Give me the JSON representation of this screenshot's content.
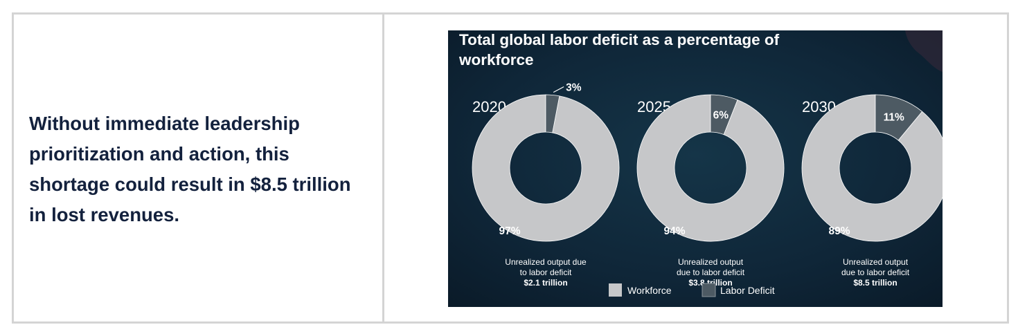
{
  "left_panel": {
    "text": "Without immediate leadership prioritization and action, this shortage could result in $8.5 trillion in lost revenues."
  },
  "chart_data": {
    "type": "pie",
    "title_lines": [
      "Total global labor deficit as a percentage of",
      "workforce"
    ],
    "charts": [
      {
        "year": "2020",
        "workforce_pct": 97,
        "deficit_pct": 3,
        "workforce_label": "97%",
        "deficit_label": "3%",
        "caption_lines": [
          "Unrealized output due",
          "to labor deficit"
        ],
        "amount": "$2.1 trillion"
      },
      {
        "year": "2025",
        "workforce_pct": 94,
        "deficit_pct": 6,
        "workforce_label": "94%",
        "deficit_label": "6%",
        "caption_lines": [
          "Unrealized output",
          "due to labor deficit"
        ],
        "amount": "$3.8 trillion"
      },
      {
        "year": "2030",
        "workforce_pct": 89,
        "deficit_pct": 11,
        "workforce_label": "89%",
        "deficit_label": "11%",
        "caption_lines": [
          "Unrealized output",
          "due to labor deficit"
        ],
        "amount": "$8.5 trillion"
      }
    ],
    "legend": [
      {
        "label": "Workforce",
        "color": "#c6c7c9"
      },
      {
        "label": "Labor Deficit",
        "color": "#4d5a63"
      }
    ],
    "legend_position": "bottom",
    "colors": {
      "background": "#0d2233",
      "workforce": "#c6c7c9",
      "deficit": "#4d5a63"
    }
  }
}
